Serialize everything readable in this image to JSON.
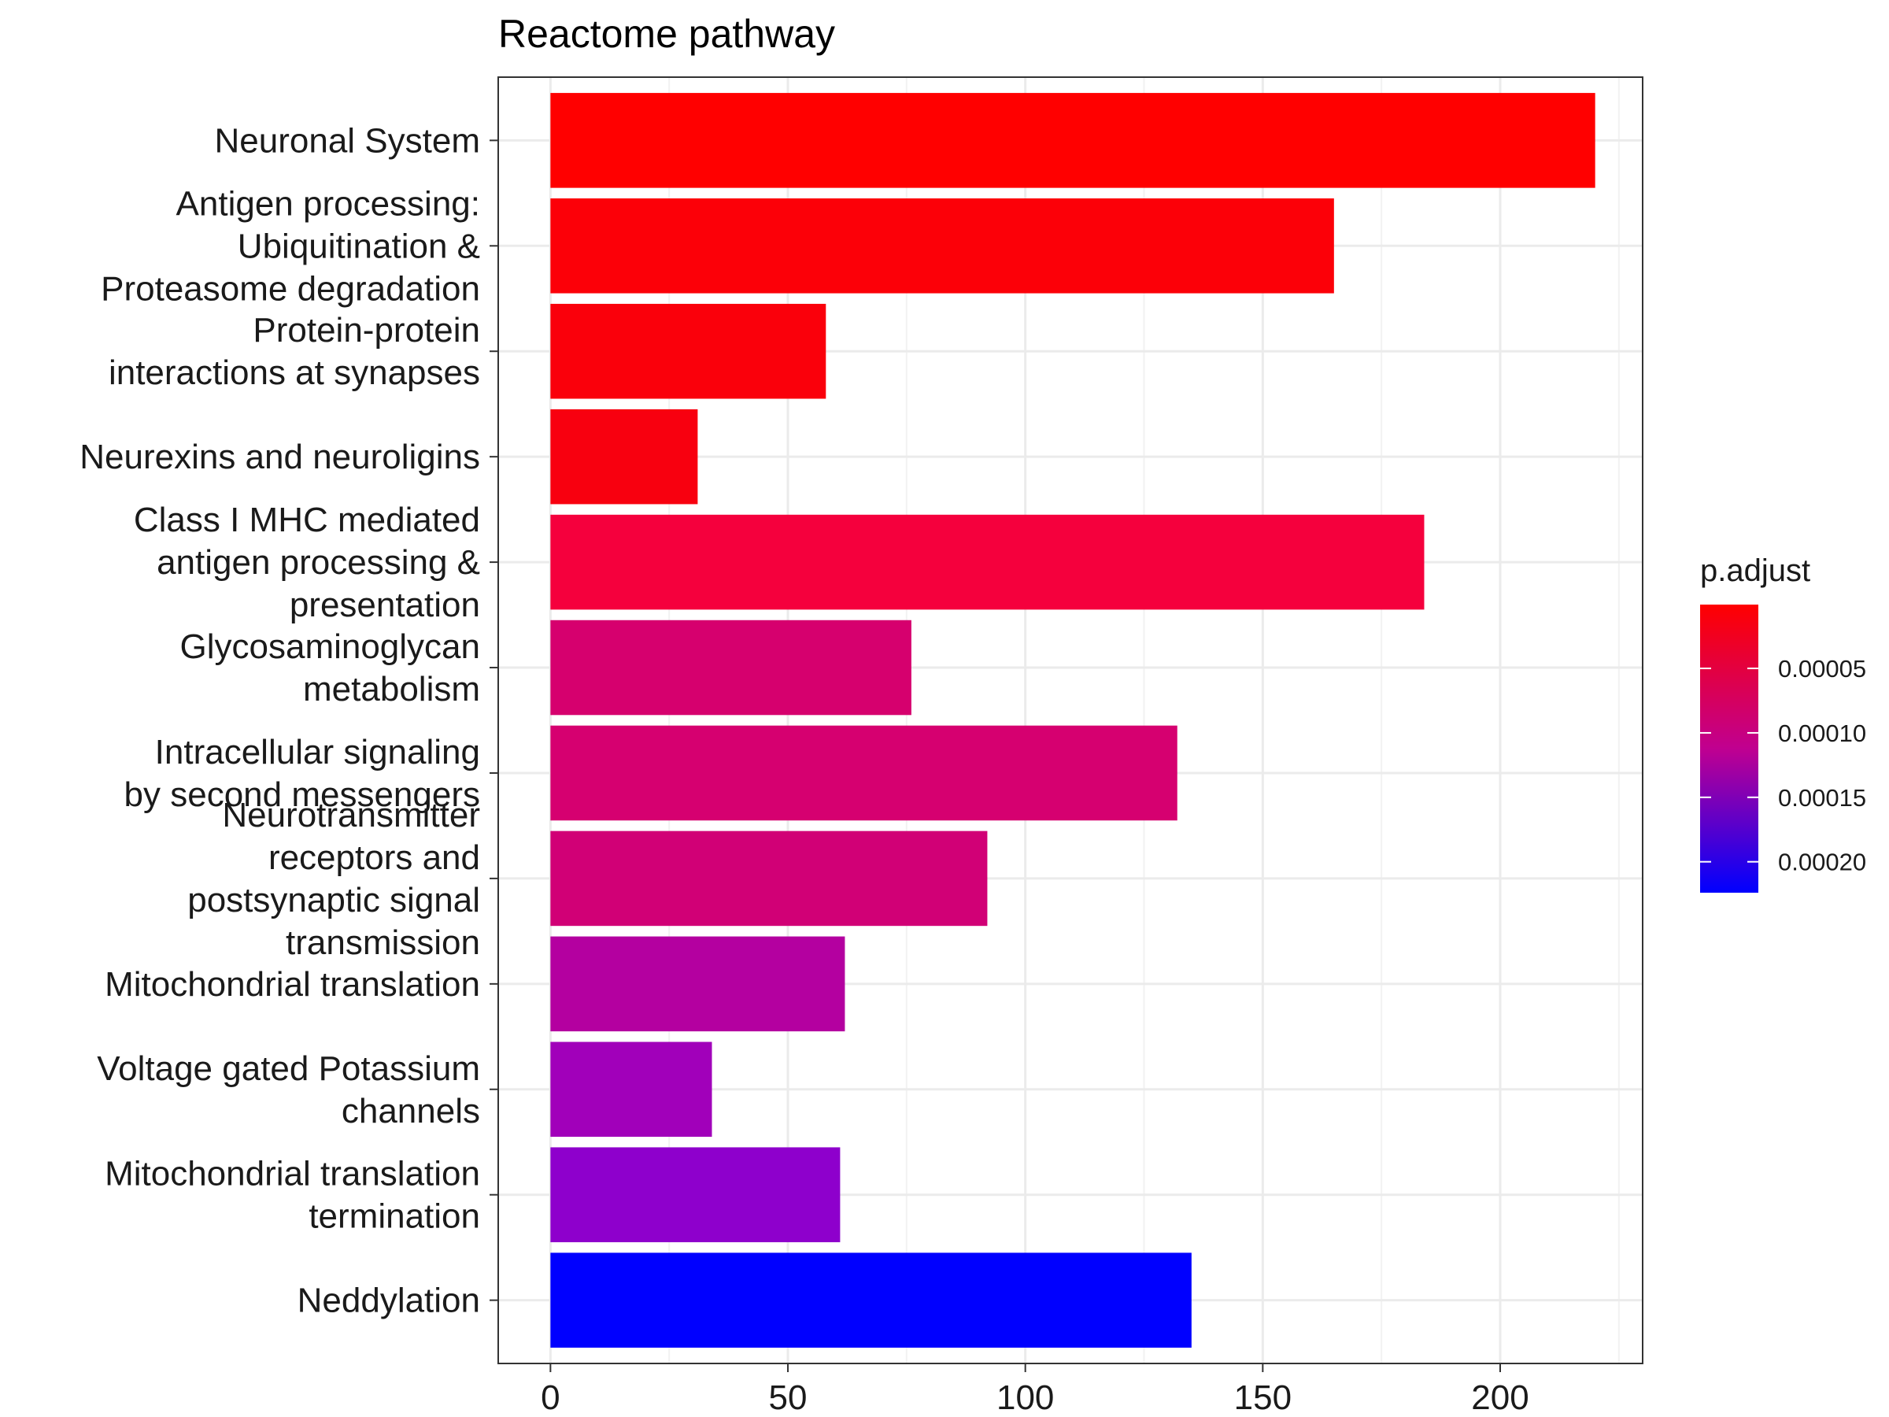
{
  "chart_data": {
    "type": "bar",
    "orientation": "horizontal",
    "title": "Reactome pathway",
    "xlabel": "",
    "ylabel": "",
    "xlim": [
      -11,
      230
    ],
    "xticks": [
      0,
      50,
      100,
      150,
      200
    ],
    "grid": true,
    "categories": [
      [
        "Neuronal System"
      ],
      [
        "Antigen processing:",
        "Ubiquitination &",
        "Proteasome degradation"
      ],
      [
        "Protein-protein",
        "interactions at synapses"
      ],
      [
        "Neurexins and neuroligins"
      ],
      [
        "Class I MHC mediated",
        "antigen processing &",
        "presentation"
      ],
      [
        "Glycosaminoglycan",
        "metabolism"
      ],
      [
        "Intracellular signaling",
        "by second messengers"
      ],
      [
        "Neurotransmitter",
        "receptors and",
        "postsynaptic signal",
        "transmission"
      ],
      [
        "Mitochondrial translation"
      ],
      [
        "Voltage gated Potassium",
        "channels"
      ],
      [
        "Mitochondrial translation",
        "termination"
      ],
      [
        "Neddylation"
      ]
    ],
    "values": [
      220,
      165,
      58,
      31,
      184,
      76,
      132,
      92,
      62,
      34,
      61,
      135
    ],
    "colors": [
      "#ff0000",
      "#fc0008",
      "#fa000b",
      "#f8000f",
      "#f5003d",
      "#d6006e",
      "#d60070",
      "#d10076",
      "#b400a0",
      "#a100ba",
      "#8e00cc",
      "#0000ff"
    ],
    "legend": {
      "title": "p.adjust",
      "placement": "right",
      "ticks": [
        "0.00005",
        "0.00010",
        "0.00015",
        "0.00020"
      ],
      "tick_values": [
        5e-05,
        0.0001,
        0.00015,
        0.0002
      ],
      "range": [
        5e-07,
        0.000224
      ],
      "color_low": "#ff0000",
      "color_high": "#0000ff"
    }
  }
}
